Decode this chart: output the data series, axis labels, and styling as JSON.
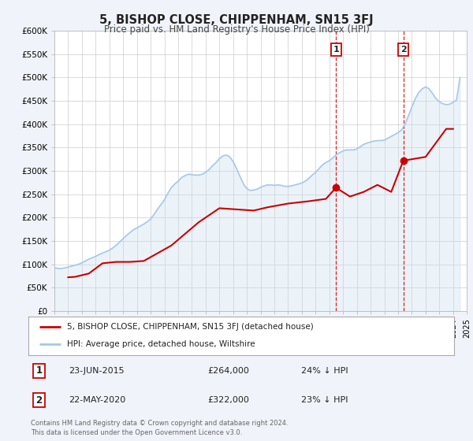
{
  "title": "5, BISHOP CLOSE, CHIPPENHAM, SN15 3FJ",
  "subtitle": "Price paid vs. HM Land Registry's House Price Index (HPI)",
  "xlim": [
    1995,
    2025
  ],
  "ylim": [
    0,
    600000
  ],
  "yticks": [
    0,
    50000,
    100000,
    150000,
    200000,
    250000,
    300000,
    350000,
    400000,
    450000,
    500000,
    550000,
    600000
  ],
  "ytick_labels": [
    "£0",
    "£50K",
    "£100K",
    "£150K",
    "£200K",
    "£250K",
    "£300K",
    "£350K",
    "£400K",
    "£450K",
    "£500K",
    "£550K",
    "£600K"
  ],
  "xticks": [
    1995,
    1996,
    1997,
    1998,
    1999,
    2000,
    2001,
    2002,
    2003,
    2004,
    2005,
    2006,
    2007,
    2008,
    2009,
    2010,
    2011,
    2012,
    2013,
    2014,
    2015,
    2016,
    2017,
    2018,
    2019,
    2020,
    2021,
    2022,
    2023,
    2024,
    2025
  ],
  "hpi_color": "#a8c8e8",
  "hpi_fill_color": "#c8dff0",
  "price_color": "#cc0000",
  "bg_color": "#f0f4fa",
  "plot_bg": "#ffffff",
  "marker1_date": 2015.48,
  "marker1_price": 264000,
  "marker2_date": 2020.38,
  "marker2_price": 322000,
  "vline1_x": 2015.48,
  "vline2_x": 2020.38,
  "legend_line1": "5, BISHOP CLOSE, CHIPPENHAM, SN15 3FJ (detached house)",
  "legend_line2": "HPI: Average price, detached house, Wiltshire",
  "annotation1_num": "1",
  "annotation1_date": "23-JUN-2015",
  "annotation1_price": "£264,000",
  "annotation1_pct": "24% ↓ HPI",
  "annotation2_num": "2",
  "annotation2_date": "22-MAY-2020",
  "annotation2_price": "£322,000",
  "annotation2_pct": "23% ↓ HPI",
  "footer": "Contains HM Land Registry data © Crown copyright and database right 2024.\nThis data is licensed under the Open Government Licence v3.0.",
  "hpi_data_x": [
    1995.0,
    1995.25,
    1995.5,
    1995.75,
    1996.0,
    1996.25,
    1996.5,
    1996.75,
    1997.0,
    1997.25,
    1997.5,
    1997.75,
    1998.0,
    1998.25,
    1998.5,
    1998.75,
    1999.0,
    1999.25,
    1999.5,
    1999.75,
    2000.0,
    2000.25,
    2000.5,
    2000.75,
    2001.0,
    2001.25,
    2001.5,
    2001.75,
    2002.0,
    2002.25,
    2002.5,
    2002.75,
    2003.0,
    2003.25,
    2003.5,
    2003.75,
    2004.0,
    2004.25,
    2004.5,
    2004.75,
    2005.0,
    2005.25,
    2005.5,
    2005.75,
    2006.0,
    2006.25,
    2006.5,
    2006.75,
    2007.0,
    2007.25,
    2007.5,
    2007.75,
    2008.0,
    2008.25,
    2008.5,
    2008.75,
    2009.0,
    2009.25,
    2009.5,
    2009.75,
    2010.0,
    2010.25,
    2010.5,
    2010.75,
    2011.0,
    2011.25,
    2011.5,
    2011.75,
    2012.0,
    2012.25,
    2012.5,
    2012.75,
    2013.0,
    2013.25,
    2013.5,
    2013.75,
    2014.0,
    2014.25,
    2014.5,
    2014.75,
    2015.0,
    2015.25,
    2015.5,
    2015.75,
    2016.0,
    2016.25,
    2016.5,
    2016.75,
    2017.0,
    2017.25,
    2017.5,
    2017.75,
    2018.0,
    2018.25,
    2018.5,
    2018.75,
    2019.0,
    2019.25,
    2019.5,
    2019.75,
    2020.0,
    2020.25,
    2020.5,
    2020.75,
    2021.0,
    2021.25,
    2021.5,
    2021.75,
    2022.0,
    2022.25,
    2022.5,
    2022.75,
    2023.0,
    2023.25,
    2023.5,
    2023.75,
    2024.0,
    2024.25,
    2024.5
  ],
  "hpi_data_y": [
    93000,
    91000,
    91000,
    92000,
    94000,
    96000,
    98000,
    100000,
    103000,
    107000,
    111000,
    114000,
    117000,
    121000,
    124000,
    127000,
    130000,
    135000,
    141000,
    148000,
    155000,
    162000,
    168000,
    174000,
    178000,
    182000,
    186000,
    191000,
    197000,
    207000,
    218000,
    228000,
    238000,
    252000,
    264000,
    272000,
    278000,
    286000,
    290000,
    293000,
    292000,
    291000,
    291000,
    293000,
    297000,
    303000,
    311000,
    318000,
    326000,
    332000,
    334000,
    330000,
    320000,
    305000,
    288000,
    272000,
    262000,
    258000,
    259000,
    261000,
    265000,
    268000,
    270000,
    270000,
    269000,
    270000,
    269000,
    267000,
    267000,
    268000,
    270000,
    272000,
    274000,
    278000,
    284000,
    291000,
    297000,
    305000,
    313000,
    318000,
    322000,
    328000,
    335000,
    339000,
    343000,
    345000,
    345000,
    345000,
    347000,
    352000,
    357000,
    360000,
    362000,
    364000,
    365000,
    365000,
    366000,
    370000,
    374000,
    378000,
    382000,
    388000,
    400000,
    418000,
    437000,
    455000,
    468000,
    476000,
    480000,
    476000,
    466000,
    455000,
    448000,
    444000,
    442000,
    443000,
    447000,
    452000,
    500000
  ],
  "price_data_x": [
    1996.0,
    1996.5,
    1997.5,
    1998.5,
    1999.5,
    2000.5,
    2001.5,
    2003.5,
    2005.5,
    2007.0,
    2009.5,
    2010.5,
    2012.0,
    2013.5,
    2014.75,
    2015.48,
    2016.5,
    2017.5,
    2018.5,
    2019.5,
    2020.38,
    2021.0,
    2022.0,
    2022.5,
    2023.0,
    2023.5,
    2024.0
  ],
  "price_data_y": [
    72000,
    73000,
    80000,
    102000,
    105000,
    105000,
    107000,
    140000,
    190000,
    220000,
    215000,
    222000,
    230000,
    235000,
    240000,
    264000,
    245000,
    255000,
    270000,
    255000,
    322000,
    325000,
    330000,
    350000,
    370000,
    390000,
    390000
  ]
}
